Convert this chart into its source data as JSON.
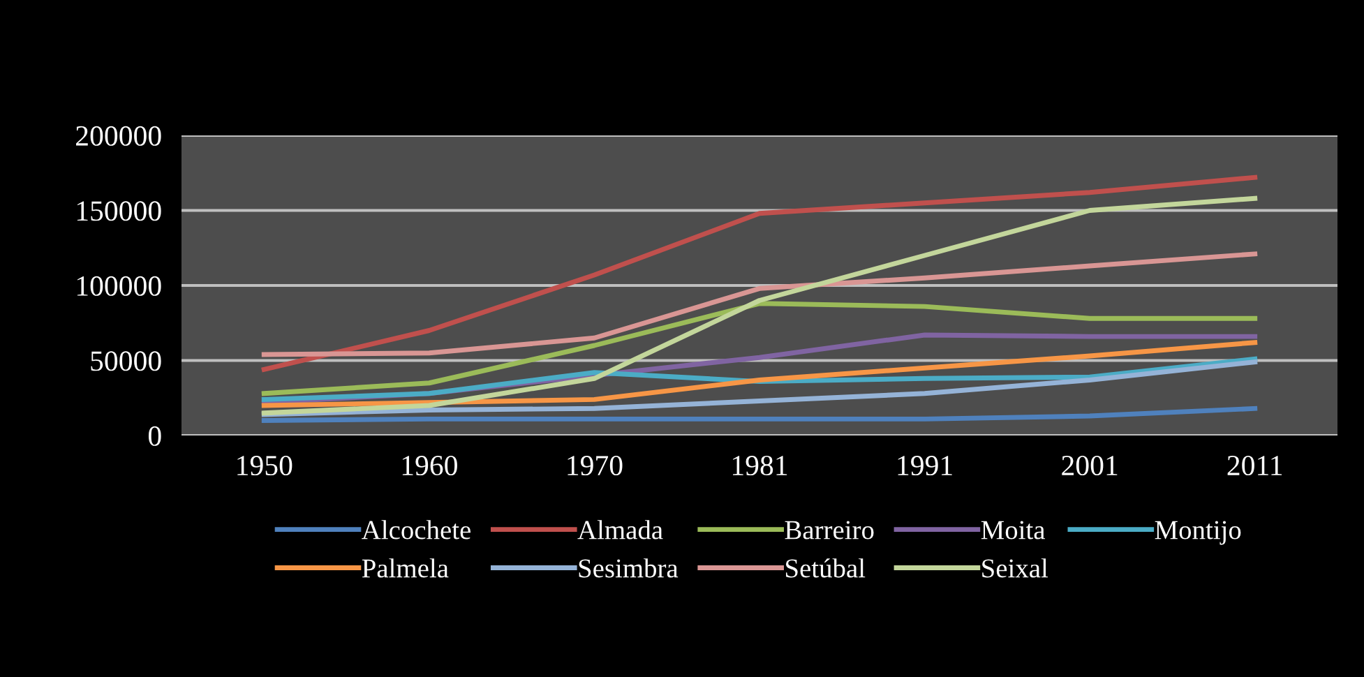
{
  "chart_data": {
    "type": "line",
    "categories": [
      "1950",
      "1960",
      "1970",
      "1981",
      "1991",
      "2001",
      "2011"
    ],
    "ylim": [
      0,
      200000
    ],
    "yticks": [
      0,
      50000,
      100000,
      150000,
      200000
    ],
    "grid": "y",
    "legend": "bottom",
    "marker": "none",
    "line_style": "solid",
    "series": [
      {
        "name": "Alcochete",
        "color": "#4f81bd",
        "values": [
          10000,
          11000,
          11000,
          11000,
          11000,
          13000,
          18000
        ]
      },
      {
        "name": "Almada",
        "color": "#c0504d",
        "values": [
          44000,
          70000,
          107000,
          148000,
          155000,
          162000,
          172000
        ]
      },
      {
        "name": "Barreiro",
        "color": "#9bbb59",
        "values": [
          28000,
          35000,
          60000,
          88000,
          86000,
          78000,
          78000
        ]
      },
      {
        "name": "Moita",
        "color": "#8064a2",
        "values": [
          22000,
          28000,
          40000,
          52000,
          67000,
          66000,
          66000
        ]
      },
      {
        "name": "Montijo",
        "color": "#4bacc6",
        "values": [
          24000,
          28000,
          42000,
          36000,
          38000,
          39000,
          51000
        ]
      },
      {
        "name": "Palmela",
        "color": "#f79646",
        "values": [
          20000,
          22000,
          24000,
          37000,
          45000,
          53000,
          62000
        ]
      },
      {
        "name": "Sesimbra",
        "color": "#95b3d7",
        "values": [
          14000,
          17000,
          18000,
          23000,
          28000,
          37000,
          49000
        ]
      },
      {
        "name": "Setúbal",
        "color": "#d99694",
        "values": [
          54000,
          55000,
          65000,
          98000,
          105000,
          113000,
          121000
        ]
      },
      {
        "name": "Seixal",
        "color": "#c3d69b",
        "values": [
          15000,
          20000,
          38000,
          90000,
          120000,
          150000,
          158000
        ]
      }
    ]
  }
}
